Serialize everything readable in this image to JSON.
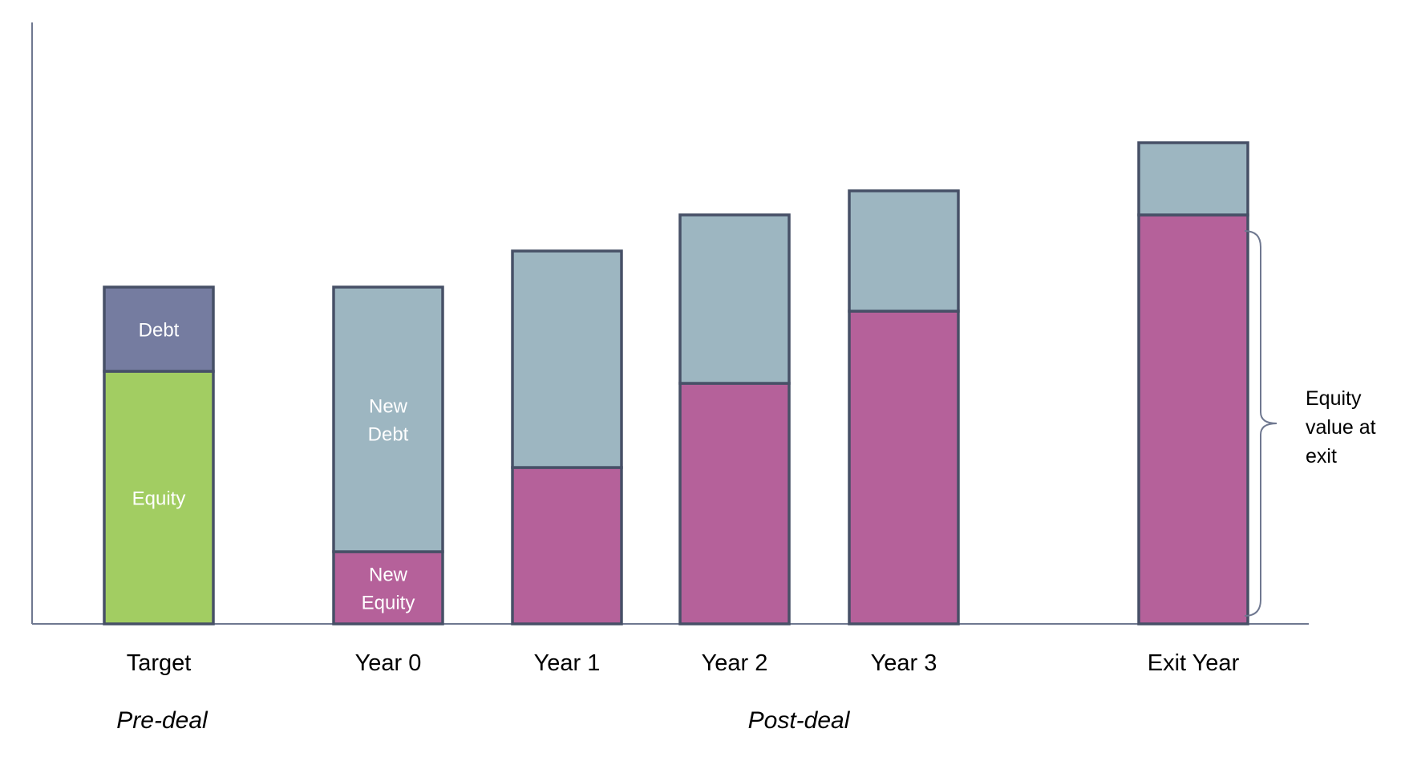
{
  "chart_data": {
    "type": "bar",
    "stacked": true,
    "categories": [
      "Target",
      "Year 0",
      "Year 1",
      "Year 2",
      "Year 3",
      "Exit Year"
    ],
    "groups": [
      {
        "label": "Pre-deal",
        "categories": [
          "Target"
        ]
      },
      {
        "label": "Post-deal",
        "categories": [
          "Year 0",
          "Year 1",
          "Year 2",
          "Year 3"
        ]
      }
    ],
    "series": [
      {
        "color": "#a2cd62",
        "values": [
          42,
          0,
          0,
          0,
          0,
          0
        ],
        "labels": [
          "Equity",
          "",
          "",
          "",
          "",
          ""
        ]
      },
      {
        "color": "#b5619a",
        "values": [
          0,
          12,
          26,
          40,
          52,
          68
        ],
        "labels": [
          "",
          "New\nEquity",
          "",
          "",
          "",
          ""
        ]
      },
      {
        "color": "#757ca0",
        "values": [
          14,
          0,
          0,
          0,
          0,
          0
        ],
        "labels": [
          "Debt",
          "",
          "",
          "",
          "",
          ""
        ]
      },
      {
        "color": "#9db6c1",
        "values": [
          0,
          44,
          36,
          28,
          20,
          12
        ],
        "labels": [
          "",
          "New\nDebt",
          "",
          "",
          "",
          ""
        ]
      }
    ],
    "annotation": {
      "text": "Equity value at exit",
      "lines": [
        "Equity",
        "value at",
        "exit"
      ],
      "category": "Exit Year"
    },
    "ylim": [
      0,
      100
    ],
    "grid": false,
    "axes": {
      "y_ticks": false,
      "color": "#6f7890"
    },
    "bar_border_color": "#475067"
  }
}
